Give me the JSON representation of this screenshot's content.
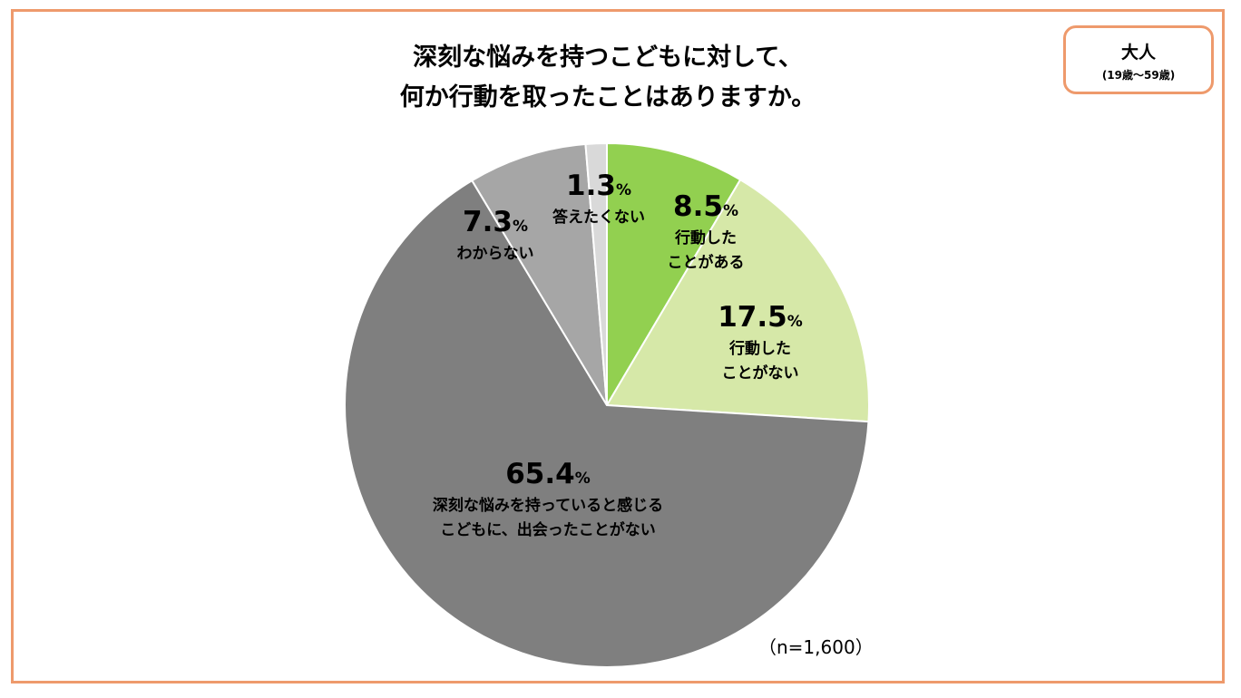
{
  "title_line1": "深刻な悩みを持つこどもに対して、",
  "title_line2": "何か行動を取ったことはありますか。",
  "badge": {
    "label": "大人",
    "age": "(19歳～59歳)"
  },
  "sample": "（n=1,600）",
  "chart_data": {
    "type": "pie",
    "start_angle_deg": 0,
    "direction": "clockwise",
    "slices": [
      {
        "value": 8.5,
        "value_label": "8.5",
        "unit": "%",
        "label_lines": [
          "行動した",
          "ことがある"
        ],
        "color": "#92d050"
      },
      {
        "value": 17.5,
        "value_label": "17.5",
        "unit": "%",
        "label_lines": [
          "行動した",
          "ことがない"
        ],
        "color": "#d6e8a8"
      },
      {
        "value": 65.4,
        "value_label": "65.4",
        "unit": "%",
        "label_lines": [
          "深刻な悩みを持っていると感じる",
          "こどもに、出会ったことがない"
        ],
        "color": "#7f7f7f"
      },
      {
        "value": 7.3,
        "value_label": "7.3",
        "unit": "%",
        "label_lines": [
          "わからない"
        ],
        "color": "#a6a6a6"
      },
      {
        "value": 1.3,
        "value_label": "1.3",
        "unit": "%",
        "label_lines": [
          "答えたくない"
        ],
        "color": "#d9d9d9"
      }
    ]
  }
}
